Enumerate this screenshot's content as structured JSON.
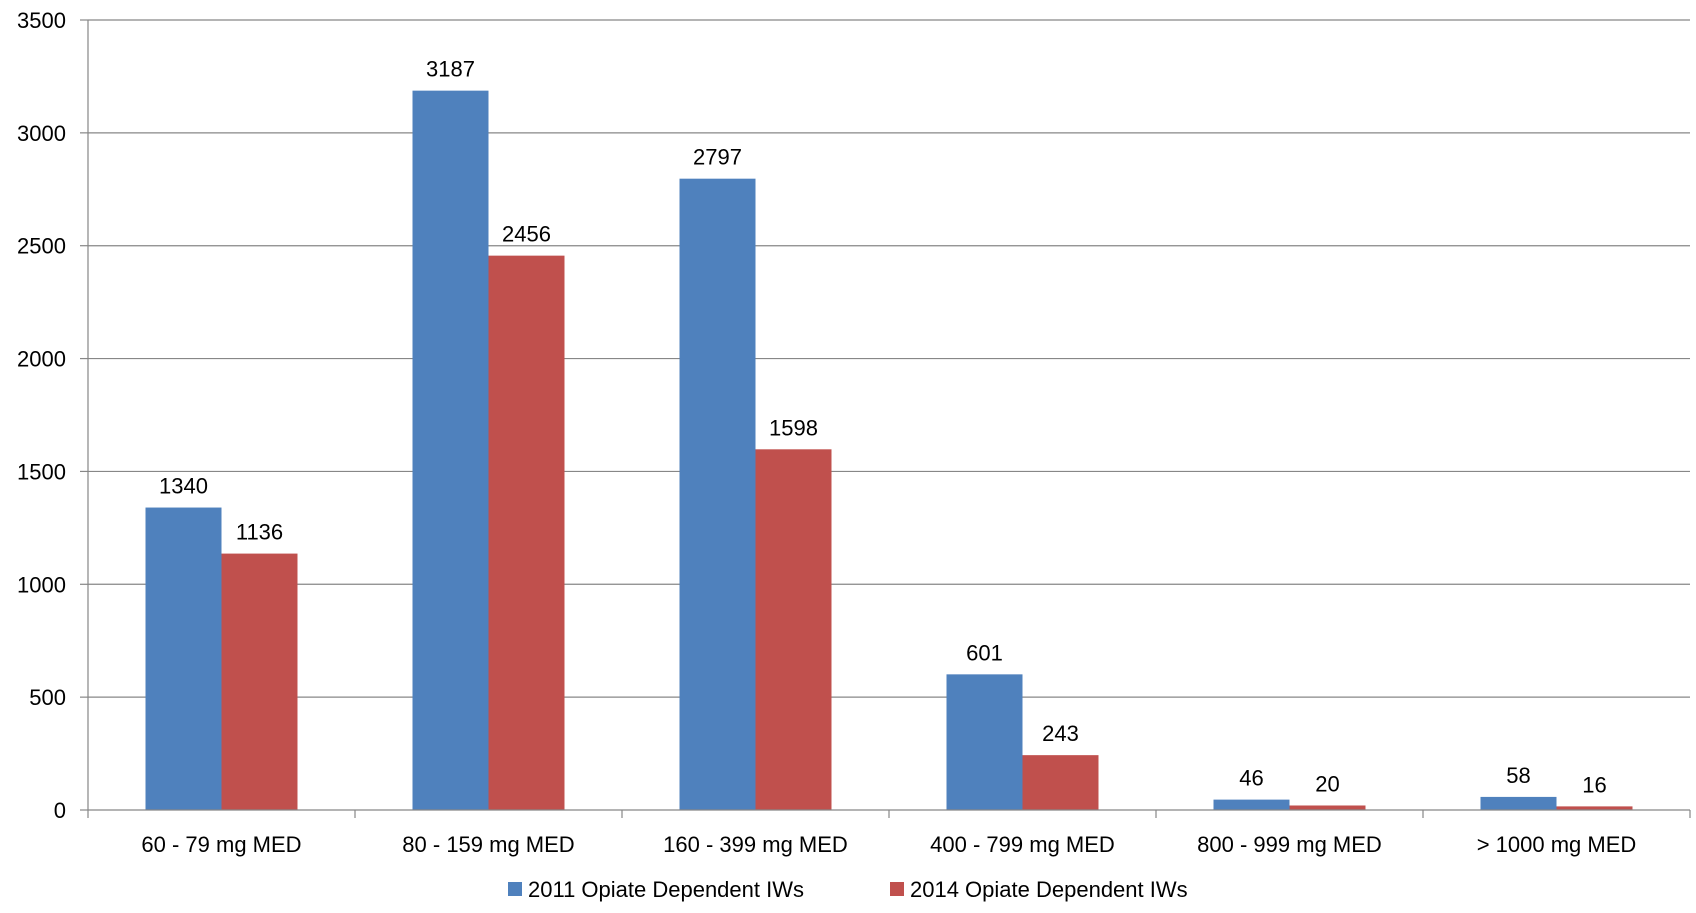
{
  "chart_data": {
    "type": "bar",
    "categories": [
      "60 - 79 mg MED",
      "80 - 159 mg MED",
      "160 - 399 mg MED",
      "400 - 799 mg MED",
      "800 - 999 mg MED",
      "> 1000 mg MED"
    ],
    "series": [
      {
        "name": "2011 Opiate Dependent IWs",
        "color": "#4F81BD",
        "values": [
          1340,
          3187,
          2797,
          601,
          46,
          58
        ]
      },
      {
        "name": "2014 Opiate Dependent IWs",
        "color": "#C0504D",
        "values": [
          1136,
          2456,
          1598,
          243,
          20,
          16
        ]
      }
    ],
    "title": "",
    "xlabel": "",
    "ylabel": "",
    "ylim": [
      0,
      3500
    ],
    "yticks": [
      0,
      500,
      1000,
      1500,
      2000,
      2500,
      3000,
      3500
    ],
    "grid": true,
    "legend_position": "bottom",
    "data_labels": true
  }
}
